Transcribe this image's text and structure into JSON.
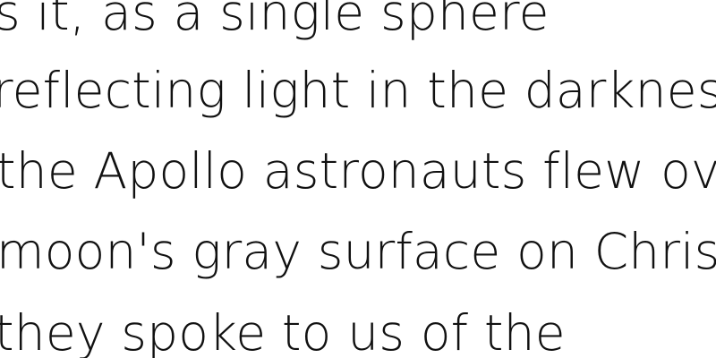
{
  "text_lines": [
    "s it, as a single sphere",
    "reflecting light in the darkness. As",
    "the Apollo astronauts flew over th",
    "moon's gray surface on Christmas",
    "they spoke to us of the"
  ]
}
